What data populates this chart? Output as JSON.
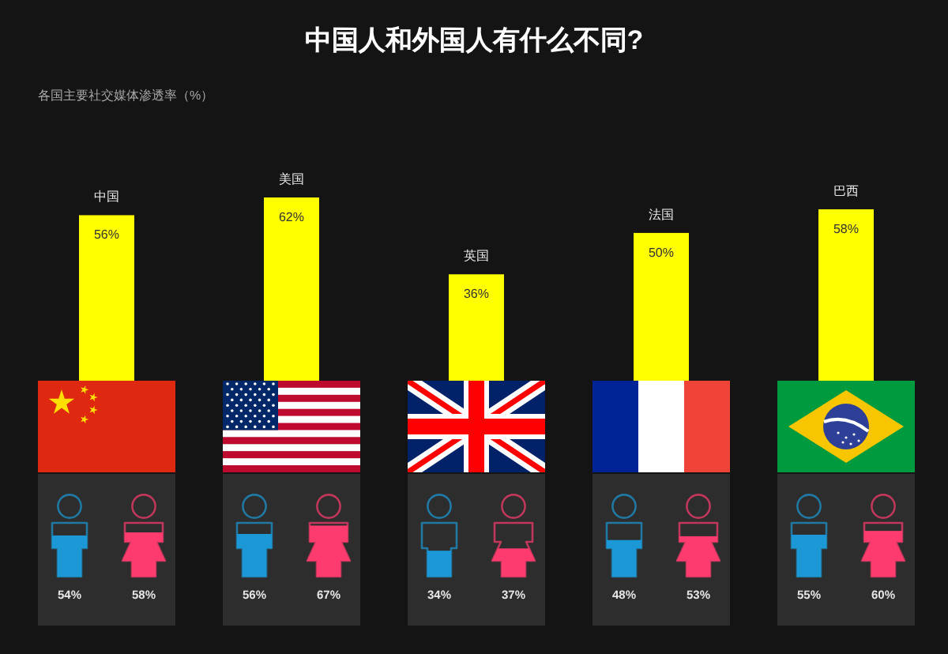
{
  "chart_data": [
    {
      "type": "bar",
      "title": "中国人和外国人有什么不同?",
      "subtitle": "各国主要社交媒体渗透率（%）",
      "categories": [
        "中国",
        "美国",
        "英国",
        "法国",
        "巴西"
      ],
      "values": [
        56,
        62,
        36,
        50,
        58
      ],
      "value_labels": [
        "56%",
        "62%",
        "36%",
        "50%",
        "58%"
      ],
      "color": "#ffff00"
    },
    {
      "type": "bar",
      "categories": [
        null,
        null,
        null,
        null,
        null
      ],
      "series": [
        {
          "color": "#1b98d5",
          "values": [
            54,
            56,
            34,
            48,
            55
          ],
          "value_labels": [
            "54%",
            "56%",
            "34%",
            "48%",
            "55%"
          ]
        },
        {
          "color": "#fe3b6f",
          "values": [
            58,
            67,
            37,
            53,
            60
          ],
          "value_labels": [
            "58%",
            "67%",
            "37%",
            "53%",
            "60%"
          ]
        }
      ]
    }
  ]
}
